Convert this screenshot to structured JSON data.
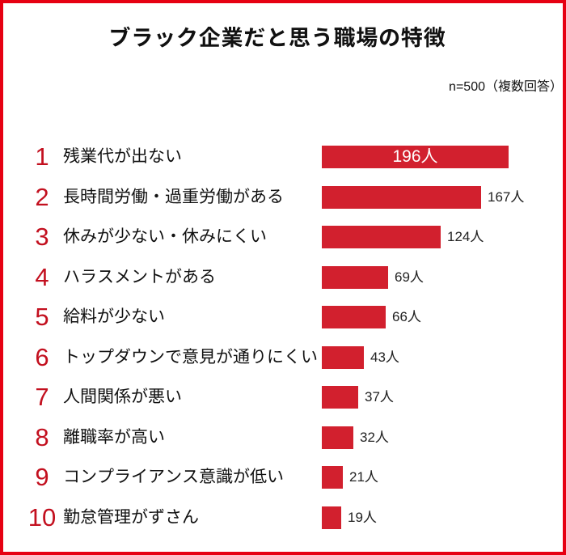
{
  "chart_data": {
    "type": "bar",
    "orientation": "horizontal",
    "title": "ブラック企業だと思う職場の特徴",
    "note": "n=500（複数回答）",
    "sample_size": 500,
    "unit": "人",
    "axes_hidden": true,
    "grid": false,
    "legend": false,
    "ranks": [
      "1",
      "2",
      "3",
      "4",
      "5",
      "6",
      "7",
      "8",
      "9",
      "10"
    ],
    "categories": [
      "残業代が出ない",
      "長時間労働・過重労働がある",
      "休みが少ない・休みにくい",
      "ハラスメントがある",
      "給料が少ない",
      "トップダウンで意見が通りにくい",
      "人間関係が悪い",
      "離職率が高い",
      "コンプライアンス意識が低い",
      "勤怠管理がずさん"
    ],
    "values": [
      196,
      167,
      124,
      69,
      66,
      43,
      37,
      32,
      21,
      19
    ],
    "value_labels": [
      "196人",
      "167人",
      "124人",
      "69人",
      "66人",
      "43人",
      "37人",
      "32人",
      "21人",
      "19人"
    ],
    "value_label_position": [
      "inside",
      "outside",
      "outside",
      "outside",
      "outside",
      "outside",
      "outside",
      "outside",
      "outside",
      "outside"
    ]
  },
  "colors": {
    "frame_border": "#e60012",
    "bar_fill": "#d2202e",
    "rank_number": "#c3101f",
    "title_text": "#111111",
    "category_text": "#111111",
    "value_text": "#222222",
    "value_inside_text": "#ffffff",
    "background": "#ffffff"
  }
}
